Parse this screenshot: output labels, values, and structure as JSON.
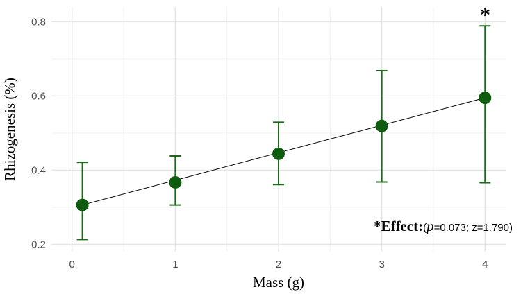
{
  "chart_data": {
    "type": "scatter",
    "title": "",
    "xlabel": "Mass (g)",
    "ylabel": "Rhizogenesis (%)",
    "xlim": [
      -0.2,
      4.2
    ],
    "ylim": [
      0.18,
      0.84
    ],
    "x_ticks": [
      0,
      1,
      2,
      3,
      4
    ],
    "x_tick_labels": [
      "0",
      "1",
      "2",
      "3",
      "4"
    ],
    "y_ticks": [
      0.2,
      0.4,
      0.6,
      0.8
    ],
    "y_tick_labels": [
      "0.2",
      "0.4",
      "0.6",
      "0.8"
    ],
    "grid": true,
    "series": [
      {
        "name": "Rhizogenesis",
        "x": [
          0.1,
          1.0,
          2.0,
          3.0,
          4.0
        ],
        "y": [
          0.306,
          0.367,
          0.444,
          0.519,
          0.595
        ],
        "lower": [
          0.213,
          0.306,
          0.361,
          0.368,
          0.366
        ],
        "upper": [
          0.421,
          0.438,
          0.529,
          0.668,
          0.789
        ]
      }
    ],
    "fit_line": {
      "x": [
        0.1,
        4.0
      ],
      "y": [
        0.306,
        0.595
      ]
    },
    "annotations": {
      "star": "*",
      "star_at": {
        "x": 4.0,
        "y": 0.789
      },
      "effect_prefix": "*Effect:",
      "effect_open": "(",
      "effect_p_symbol": "p",
      "effect_stats": "=0.073; z=1.790)"
    },
    "colors": {
      "point": "#0e5c0e",
      "errorbar": "#1b6b1b",
      "fit_line": "#000000",
      "grid_major": "#e6e6e6",
      "grid_minor": "#f2f2f2",
      "tick_text": "#4d4d4d"
    }
  }
}
